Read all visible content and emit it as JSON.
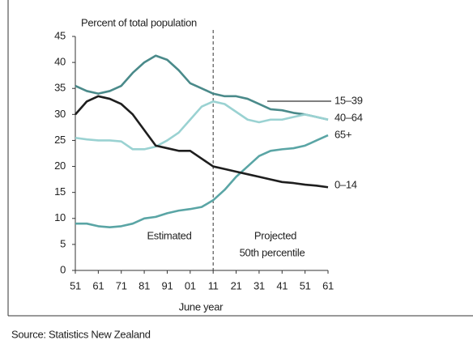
{
  "chart_data": {
    "type": "line",
    "title": "Percent of total population",
    "x_label": "June year",
    "source": "Source: Statistics New Zealand",
    "annotations": [
      "Estimated",
      "Projected",
      "50th percentile"
    ],
    "divider": 2011,
    "x": [
      1951,
      1956,
      1961,
      1966,
      1971,
      1976,
      1981,
      1986,
      1991,
      1996,
      2001,
      2006,
      2011,
      2016,
      2021,
      2026,
      2031,
      2036,
      2041,
      2046,
      2051,
      2056,
      2061
    ],
    "series": [
      {
        "name": "15–39",
        "color": "#4a8a8a",
        "values": [
          35.5,
          34.5,
          34,
          34.5,
          35.5,
          38,
          40,
          41.3,
          40.5,
          38.5,
          36,
          35,
          34,
          33.5,
          33.5,
          33,
          32,
          31,
          30.8,
          30.3,
          30,
          29.5,
          29
        ]
      },
      {
        "name": "40–64",
        "color": "#9ad2d2",
        "values": [
          25.5,
          25.2,
          25,
          25,
          24.8,
          23.3,
          23.3,
          23.8,
          25,
          26.5,
          29,
          31.5,
          32.5,
          32,
          30.5,
          29,
          28.5,
          29,
          29,
          29.5,
          30,
          29.5,
          29
        ]
      },
      {
        "name": "65+",
        "color": "#5aa5a5",
        "values": [
          9,
          9,
          8.5,
          8.3,
          8.5,
          9,
          10,
          10.3,
          11,
          11.5,
          11.8,
          12.2,
          13.5,
          15.5,
          18,
          20,
          22,
          23,
          23.3,
          23.5,
          24,
          25,
          26
        ]
      },
      {
        "name": "0–14",
        "color": "#1e1e1e",
        "values": [
          30,
          32.5,
          33.5,
          33,
          32,
          30,
          27,
          24,
          23.5,
          23,
          23,
          21.5,
          20,
          19.5,
          19,
          18.5,
          18,
          17.5,
          17,
          16.8,
          16.5,
          16.3,
          16
        ]
      }
    ],
    "xlim": [
      1951,
      2061
    ],
    "xticks": [
      {
        "value": 1951,
        "label": "51"
      },
      {
        "value": 1961,
        "label": "61"
      },
      {
        "value": 1971,
        "label": "71"
      },
      {
        "value": 1981,
        "label": "81"
      },
      {
        "value": 1991,
        "label": "91"
      },
      {
        "value": 2001,
        "label": "01"
      },
      {
        "value": 2011,
        "label": "11"
      },
      {
        "value": 2021,
        "label": "21"
      },
      {
        "value": 2031,
        "label": "31"
      },
      {
        "value": 2041,
        "label": "41"
      },
      {
        "value": 2051,
        "label": "51"
      },
      {
        "value": 2061,
        "label": "61"
      }
    ],
    "ylim": [
      0,
      45
    ],
    "yticks": [
      0,
      5,
      10,
      15,
      20,
      25,
      30,
      35,
      40,
      45
    ],
    "grid": false
  }
}
